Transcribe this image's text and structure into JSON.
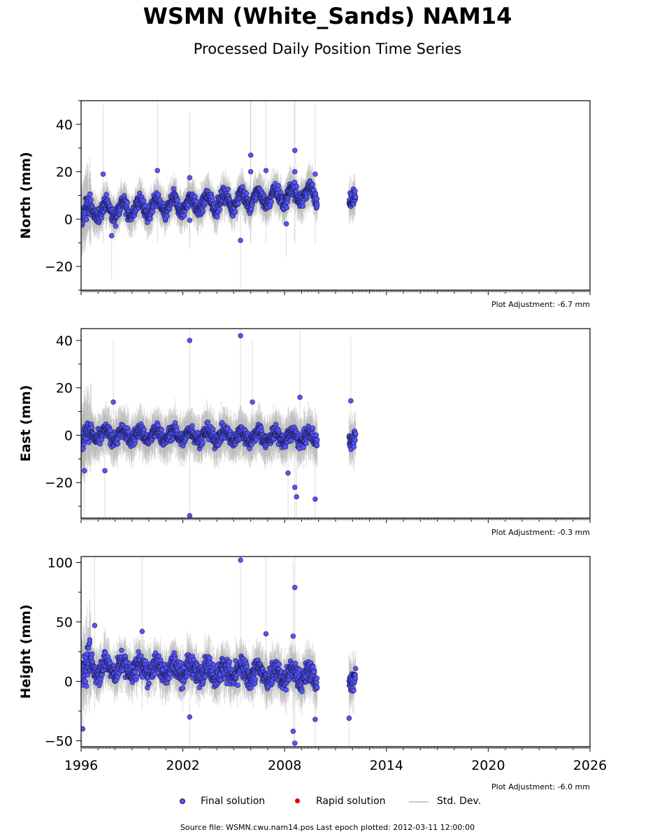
{
  "header": {
    "title": "WSMN (White_Sands) NAM14",
    "subtitle": "Processed Daily Position Time Series"
  },
  "chart_data": [
    {
      "type": "scatter",
      "ylabel": "North (mm)",
      "xlim": [
        1996,
        2026
      ],
      "ylim": [
        -30,
        50
      ],
      "yticks": [
        -20,
        0,
        20,
        40
      ],
      "adjustment": "Plot Adjustment: -6.7 mm",
      "trend": {
        "segments": [
          [
            1996.0,
            3
          ],
          [
            2002.0,
            6
          ],
          [
            2009.9,
            11
          ],
          [
            2011.8,
            10
          ],
          [
            2012.2,
            11
          ]
        ],
        "seasonal_amplitude": 3,
        "scatter": 3
      },
      "sigma": 6,
      "outliers": [
        [
          1997.3,
          19
        ],
        [
          2000.5,
          20.5
        ],
        [
          2002.4,
          17.5
        ],
        [
          2002.4,
          -0.5
        ],
        [
          2005.4,
          -9
        ],
        [
          2006.0,
          27
        ],
        [
          2006.0,
          20
        ],
        [
          2006.9,
          20.5
        ],
        [
          2008.1,
          -2
        ],
        [
          2008.6,
          29
        ],
        [
          2008.6,
          20
        ],
        [
          1997.8,
          -7
        ],
        [
          2009.8,
          19
        ]
      ]
    },
    {
      "type": "scatter",
      "ylabel": "East (mm)",
      "xlim": [
        1996,
        2026
      ],
      "ylim": [
        -35,
        45
      ],
      "yticks": [
        -20,
        0,
        20,
        40
      ],
      "adjustment": "Plot Adjustment: -0.3 mm",
      "trend": {
        "segments": [
          [
            1996.0,
            0
          ],
          [
            2002.0,
            0
          ],
          [
            2009.9,
            -1
          ],
          [
            2011.8,
            -1
          ],
          [
            2012.2,
            0
          ]
        ],
        "seasonal_amplitude": 2,
        "scatter": 3
      },
      "sigma": 7,
      "outliers": [
        [
          2002.4,
          40
        ],
        [
          2002.4,
          -34
        ],
        [
          2005.4,
          42
        ],
        [
          1997.4,
          -15
        ],
        [
          2006.1,
          14
        ],
        [
          2008.2,
          -16
        ],
        [
          2008.6,
          -22
        ],
        [
          2008.7,
          -26
        ],
        [
          2009.8,
          -27
        ],
        [
          2008.9,
          16
        ],
        [
          2011.9,
          14.5
        ],
        [
          1997.9,
          14
        ],
        [
          1996.2,
          -15
        ]
      ]
    },
    {
      "type": "scatter",
      "ylabel": "Height (mm)",
      "xlim": [
        1996,
        2026
      ],
      "ylim": [
        -55,
        105
      ],
      "yticks": [
        -50,
        0,
        50,
        100
      ],
      "adjustment": "Plot Adjustment: -6.0 mm",
      "trend": {
        "segments": [
          [
            1996.0,
            12
          ],
          [
            2002.0,
            10
          ],
          [
            2009.9,
            4
          ],
          [
            2011.8,
            2
          ],
          [
            2012.2,
            5
          ]
        ],
        "seasonal_amplitude": 5,
        "scatter": 9
      },
      "sigma": 14,
      "outliers": [
        [
          2005.4,
          102
        ],
        [
          2008.6,
          79
        ],
        [
          1996.1,
          -40
        ],
        [
          2008.6,
          -52
        ],
        [
          2002.4,
          -30
        ],
        [
          2008.5,
          -42
        ],
        [
          2009.8,
          -32
        ],
        [
          2011.8,
          -31
        ],
        [
          1996.8,
          47
        ],
        [
          2006.9,
          40
        ],
        [
          2008.5,
          38
        ],
        [
          1999.6,
          42
        ]
      ]
    }
  ],
  "xaxis": {
    "ticks": [
      "1996",
      "2002",
      "2008",
      "2014",
      "2020",
      "2026"
    ]
  },
  "legend": {
    "final": "Final solution",
    "rapid": "Rapid solution",
    "std": "Std. Dev."
  },
  "colors": {
    "final": "#5555ff",
    "final_edge": "#1a1a4d",
    "rapid": "#e00000",
    "std": "#b4b4b4"
  },
  "footer": {
    "text": "Source file: WSMN.cwu.nam14.pos  Last epoch plotted: 2012-03-11 12:00:00"
  }
}
